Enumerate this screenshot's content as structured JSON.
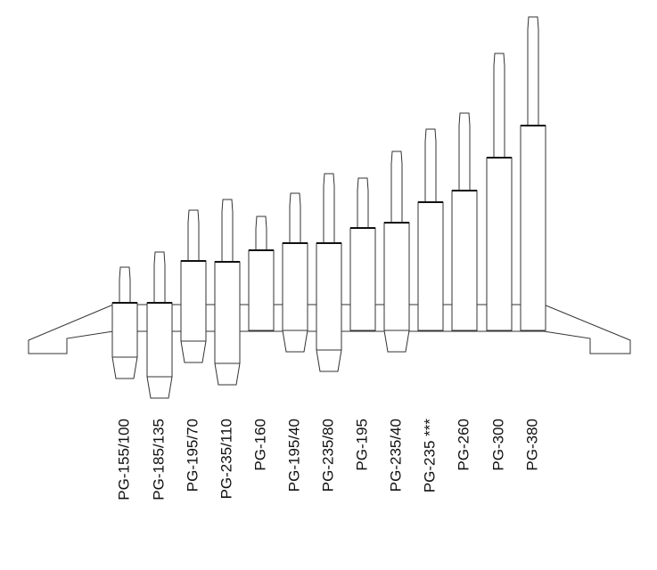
{
  "items": [
    {
      "label": "PG-155/100"
    },
    {
      "label": "PG-185/135"
    },
    {
      "label": "PG-195/70"
    },
    {
      "label": "PG-235/110"
    },
    {
      "label": "PG-160"
    },
    {
      "label": "PG-195/40"
    },
    {
      "label": "PG-235/80"
    },
    {
      "label": "PG-195"
    },
    {
      "label": "PG-235/40"
    },
    {
      "label": "PG-235 ***"
    },
    {
      "label": "PG-260"
    },
    {
      "label": "PG-300"
    },
    {
      "label": "PG-380"
    }
  ]
}
